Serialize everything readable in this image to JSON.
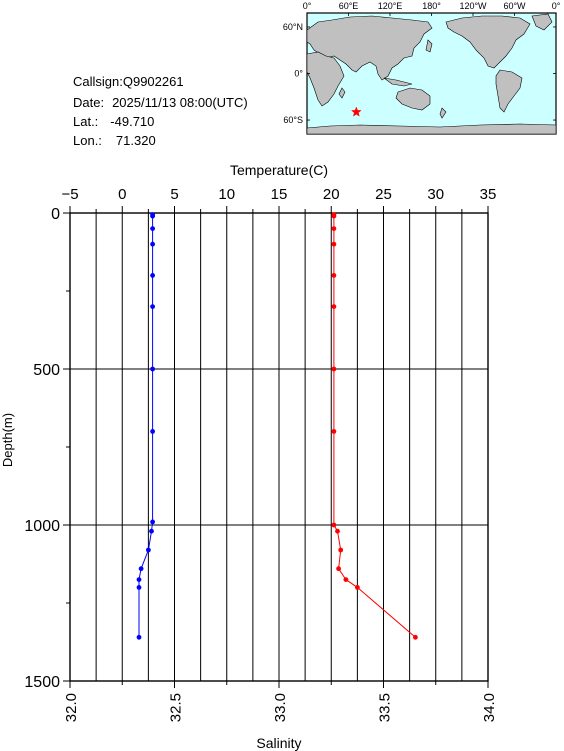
{
  "info": {
    "callsign_label": "Callsign:",
    "callsign": "Q9902261",
    "date_label": "Date:",
    "date": "2025/11/13 08:00(UTC)",
    "lat_label": "Lat.:",
    "lat": "-49.710",
    "lon_label": "Lon.:",
    "lon": "71.320"
  },
  "map": {
    "top_labels": [
      "0°",
      "60°E",
      "120°E",
      "180°",
      "120°W",
      "60°W",
      "0°"
    ],
    "side_labels": [
      "60°N",
      "0°",
      "60°S"
    ],
    "ocean_color": "#ccffff",
    "land_color": "#c0c0c0",
    "marker": {
      "lon": 71.32,
      "lat": -49.71,
      "symbol": "red-star",
      "color": "#ff0000"
    }
  },
  "chart_data": {
    "type": "line",
    "ylabel": "Depth(m)",
    "ylim": [
      1500,
      0
    ],
    "yticks": [
      0,
      500,
      1000,
      1500
    ],
    "grid": true,
    "top_axis": {
      "label": "Temperature(C)",
      "lim": [
        -5,
        35
      ],
      "ticks": [
        -5,
        0,
        5,
        10,
        15,
        20,
        25,
        30,
        35
      ],
      "tick_labels": [
        "−5",
        "0",
        "5",
        "10",
        "15",
        "20",
        "25",
        "30",
        "35"
      ]
    },
    "bottom_axis": {
      "label": "Salinity",
      "lim": [
        32.0,
        34.0
      ],
      "ticks": [
        32.0,
        32.5,
        33.0,
        33.5,
        34.0
      ],
      "tick_labels": [
        "32.0",
        "32.5",
        "33.0",
        "33.5",
        "34.0"
      ]
    },
    "series": [
      {
        "axis": "top",
        "color": "#ff0000",
        "depth": [
          5,
          10,
          50,
          100,
          200,
          300,
          500,
          700,
          1000,
          1020,
          1080,
          1140,
          1175,
          1200,
          1360
        ],
        "values": [
          20.25,
          20.25,
          20.25,
          20.25,
          20.25,
          20.25,
          20.25,
          20.25,
          20.25,
          20.6,
          20.9,
          20.7,
          21.4,
          22.5,
          28.05
        ]
      },
      {
        "axis": "bottom",
        "color": "#0000ff",
        "depth": [
          5,
          10,
          50,
          100,
          200,
          300,
          500,
          700,
          990,
          1020,
          1080,
          1140,
          1175,
          1200,
          1360
        ],
        "values": [
          32.395,
          32.395,
          32.395,
          32.395,
          32.395,
          32.395,
          32.395,
          32.395,
          32.395,
          32.39,
          32.375,
          32.34,
          32.33,
          32.33,
          32.33
        ]
      }
    ]
  }
}
